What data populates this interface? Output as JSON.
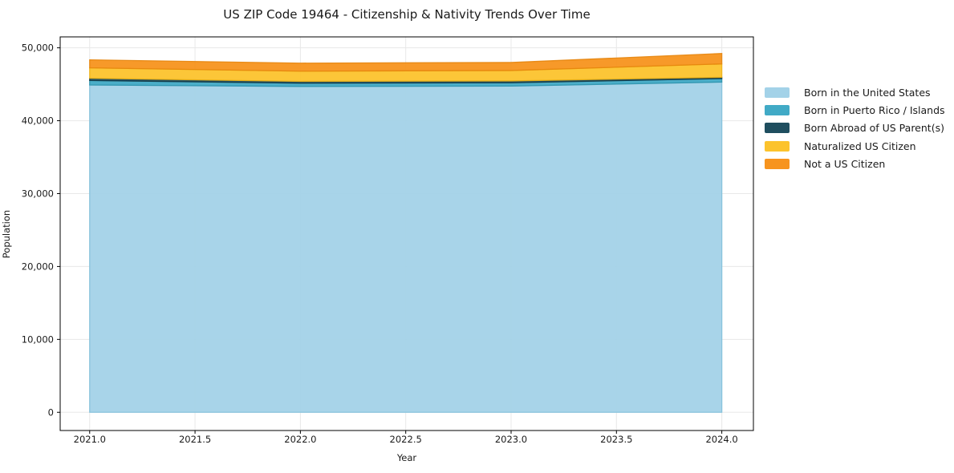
{
  "title": "US ZIP Code 19464 - Citizenship & Nativity Trends Over Time",
  "chart_data": {
    "type": "area",
    "stacked": true,
    "title": "US ZIP Code 19464 - Citizenship & Nativity Trends Over Time",
    "xlabel": "Year",
    "ylabel": "Population",
    "x": [
      2021,
      2022,
      2023,
      2024
    ],
    "series": [
      {
        "key": "born-us",
        "name": "Born in the United States",
        "color": "#a3d2e8",
        "edge": "#82c1dc",
        "values": [
          44900,
          44700,
          44750,
          45300
        ]
      },
      {
        "key": "puerto-rico-islands",
        "name": "Born in Puerto Rico / Islands",
        "color": "#41aac6",
        "edge": "#2e93ad",
        "values": [
          620,
          450,
          450,
          480
        ]
      },
      {
        "key": "born-abroad",
        "name": "Born Abroad of US Parent(s)",
        "color": "#1f4e5f",
        "edge": "#153844",
        "values": [
          300,
          250,
          260,
          180
        ]
      },
      {
        "key": "naturalized",
        "name": "Naturalized US Citizen",
        "color": "#fcc32d",
        "edge": "#eeb215",
        "values": [
          1430,
          1400,
          1430,
          1830
        ]
      },
      {
        "key": "not-citizen",
        "name": "Not a US Citizen",
        "color": "#f7941e",
        "edge": "#e6850d",
        "values": [
          1100,
          1100,
          1100,
          1430
        ]
      }
    ],
    "stacked_totals": [
      48350,
      47900,
      47990,
      49220
    ],
    "xlim": [
      2020.86,
      2024.15
    ],
    "ylim": [
      -2500,
      51500
    ],
    "x_ticks": [
      {
        "v": 2021.0,
        "label": "2021.0"
      },
      {
        "v": 2021.5,
        "label": "2021.5"
      },
      {
        "v": 2022.0,
        "label": "2022.0"
      },
      {
        "v": 2022.5,
        "label": "2022.5"
      },
      {
        "v": 2023.0,
        "label": "2023.0"
      },
      {
        "v": 2023.5,
        "label": "2023.5"
      },
      {
        "v": 2024.0,
        "label": "2024.0"
      }
    ],
    "y_ticks": [
      {
        "v": 0,
        "label": "0"
      },
      {
        "v": 10000,
        "label": "10,000"
      },
      {
        "v": 20000,
        "label": "20,000"
      },
      {
        "v": 30000,
        "label": "30,000"
      },
      {
        "v": 40000,
        "label": "40,000"
      },
      {
        "v": 50000,
        "label": "50,000"
      }
    ],
    "grid": true,
    "grid_color": "#e8e8e8",
    "axis_color": "#000000",
    "tick_label_color": "#1a1a1a",
    "legend_position": "outside-right",
    "legend_frame": false
  }
}
